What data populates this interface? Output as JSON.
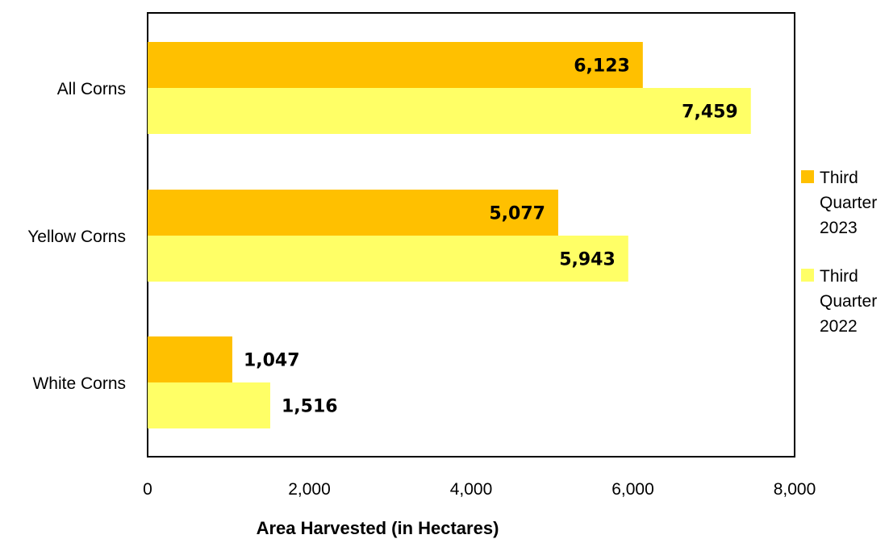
{
  "chart_data": {
    "type": "bar",
    "orientation": "horizontal",
    "categories": [
      "All Corns",
      "Yellow Corns",
      "White Corns"
    ],
    "series": [
      {
        "name": "Third Quarter 2023",
        "values": [
          6123,
          5077,
          1047
        ],
        "labels": [
          "6,123",
          "5,077",
          "1,047"
        ],
        "color": "#FFC000"
      },
      {
        "name": "Third Quarter 2022",
        "values": [
          7459,
          5943,
          1516
        ],
        "labels": [
          "7,459",
          "5,943",
          "1,516"
        ],
        "color": "#FFFF66"
      }
    ],
    "title": "",
    "xlabel": "Area Harvested (in Hectares)",
    "ylabel": "",
    "xlim": [
      0,
      8000
    ],
    "xticks": [
      "0",
      "2,000",
      "4,000",
      "6,000",
      "8,000"
    ],
    "grid": false,
    "legend": {
      "position": "right",
      "entries": [
        [
          "Third",
          "Quarter",
          "2023"
        ],
        [
          "Third",
          "Quarter",
          "2022"
        ]
      ]
    }
  }
}
